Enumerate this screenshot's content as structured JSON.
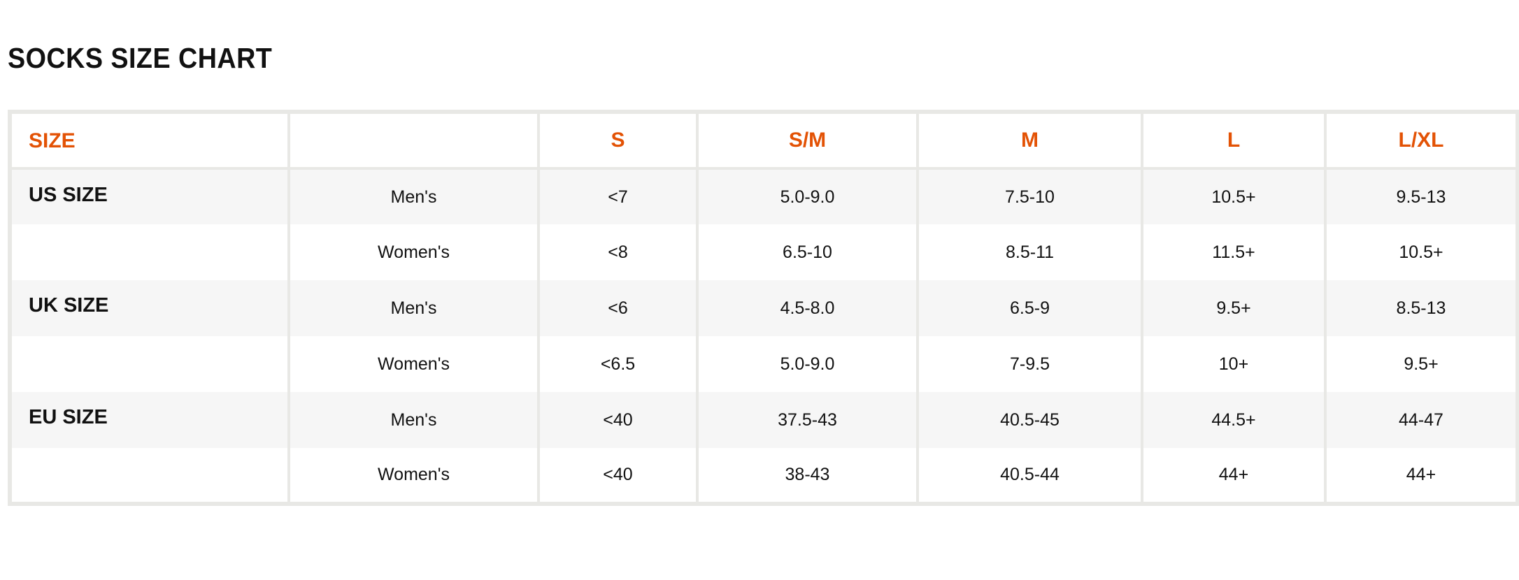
{
  "title": "SOCKS SIZE CHART",
  "accent_color": "#e35205",
  "table": {
    "headers": [
      "SIZE",
      "",
      "S",
      "S/M",
      "M",
      "L",
      "L/XL"
    ],
    "rows": [
      {
        "group": "US SIZE",
        "gender": "Men's",
        "values": [
          "<7",
          "5.0-9.0",
          "7.5-10",
          "10.5+",
          "9.5-13"
        ]
      },
      {
        "group": "",
        "gender": "Women's",
        "values": [
          "<8",
          "6.5-10",
          "8.5-11",
          "11.5+",
          "10.5+"
        ]
      },
      {
        "group": "UK SIZE",
        "gender": "Men's",
        "values": [
          "<6",
          "4.5-8.0",
          "6.5-9",
          "9.5+",
          "8.5-13"
        ]
      },
      {
        "group": "",
        "gender": "Women's",
        "values": [
          "<6.5",
          "5.0-9.0",
          "7-9.5",
          "10+",
          "9.5+"
        ]
      },
      {
        "group": "EU SIZE",
        "gender": "Men's",
        "values": [
          "<40",
          "37.5-43",
          "40.5-45",
          "44.5+",
          "44-47"
        ]
      },
      {
        "group": "",
        "gender": "Women's",
        "values": [
          "<40",
          "38-43",
          "40.5-44",
          "44+",
          "44+"
        ]
      }
    ]
  }
}
